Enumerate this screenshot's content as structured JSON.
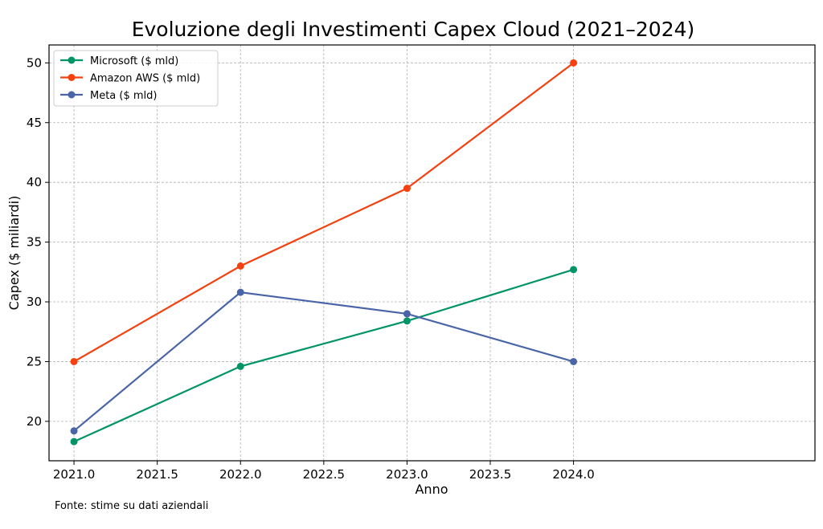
{
  "chart_data": {
    "type": "line",
    "title": "Evoluzione degli Investimenti Capex Cloud (2021–2024)",
    "xlabel": "Anno",
    "ylabel": "Capex ($ miliardi)",
    "source_note": "Fonte: stime su dati aziendali",
    "x": [
      2021,
      2022,
      2023,
      2024
    ],
    "xlim": [
      2020.85,
      2025.45
    ],
    "ylim": [
      16.7,
      51.5
    ],
    "x_ticks": [
      2021.0,
      2021.5,
      2022.0,
      2022.5,
      2023.0,
      2023.5,
      2024.0
    ],
    "x_tick_labels": [
      "2021.0",
      "2021.5",
      "2022.0",
      "2022.5",
      "2023.0",
      "2023.5",
      "2024.0"
    ],
    "y_ticks": [
      20,
      25,
      30,
      35,
      40,
      45,
      50
    ],
    "y_tick_labels": [
      "20",
      "25",
      "30",
      "35",
      "40",
      "45",
      "50"
    ],
    "grid": true,
    "legend_position": "top-left",
    "series": [
      {
        "name": "Microsoft ($ mld)",
        "color": "#009466",
        "values": [
          18.3,
          24.6,
          28.4,
          32.7
        ]
      },
      {
        "name": "Amazon AWS ($ mld)",
        "color": "#f4410f",
        "values": [
          25.0,
          33.0,
          39.5,
          50.0
        ]
      },
      {
        "name": "Meta ($ mld)",
        "color": "#4a64a8",
        "values": [
          19.2,
          30.8,
          29.0,
          25.0
        ]
      }
    ]
  }
}
